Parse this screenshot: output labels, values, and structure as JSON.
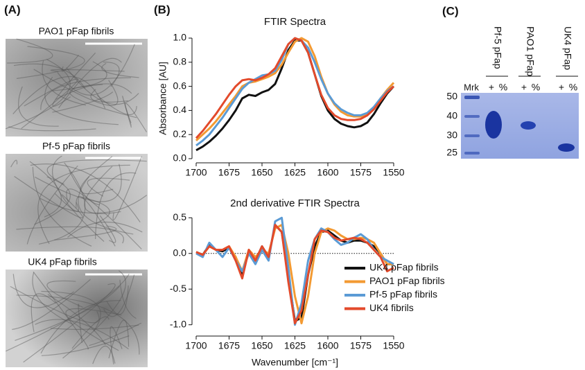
{
  "panel_a": {
    "label": "(A)",
    "captions": [
      "PAO1 pFap fibrils",
      "Pf-5 pFap fibrils",
      "UK4 pFap fibrils"
    ]
  },
  "panel_b": {
    "label": "(B)"
  },
  "panel_c": {
    "label": "(C)",
    "marker": "Mrk",
    "lanes": [
      "Pf-5 pFap",
      "PAO1 pFap",
      "UK4 pFap"
    ],
    "lane_marks": [
      "+",
      "%"
    ],
    "ladder": [
      "50",
      "40",
      "30",
      "25"
    ]
  },
  "chart_data": [
    {
      "type": "line",
      "title": "FTIR Spectra",
      "y_label": "Absorbance [AU]",
      "x": [
        1700,
        1695,
        1690,
        1685,
        1680,
        1675,
        1670,
        1665,
        1660,
        1655,
        1650,
        1645,
        1640,
        1635,
        1630,
        1625,
        1620,
        1615,
        1610,
        1605,
        1600,
        1595,
        1590,
        1585,
        1580,
        1575,
        1570,
        1565,
        1560,
        1555,
        1550
      ],
      "xlim": [
        1700,
        1550
      ],
      "xticks": [
        1700,
        1675,
        1650,
        1625,
        1600,
        1575,
        1550
      ],
      "ylim": [
        0,
        1
      ],
      "yticks": [
        {
          "value": 0,
          "label": "0.0"
        },
        0.2,
        0.4,
        0.6,
        0.8,
        {
          "value": 1,
          "label": "1.0"
        }
      ],
      "series": [
        {
          "color": "#111111",
          "values": [
            0.07,
            0.1,
            0.14,
            0.19,
            0.25,
            0.32,
            0.4,
            0.5,
            0.53,
            0.52,
            0.55,
            0.57,
            0.62,
            0.75,
            0.9,
            0.98,
            0.98,
            0.88,
            0.7,
            0.52,
            0.4,
            0.33,
            0.29,
            0.27,
            0.26,
            0.27,
            0.3,
            0.37,
            0.46,
            0.54,
            0.6
          ]
        },
        {
          "color": "#f39a32",
          "values": [
            0.15,
            0.2,
            0.25,
            0.31,
            0.38,
            0.45,
            0.52,
            0.6,
            0.63,
            0.64,
            0.66,
            0.68,
            0.71,
            0.78,
            0.88,
            0.97,
            1.0,
            0.97,
            0.85,
            0.68,
            0.54,
            0.45,
            0.39,
            0.36,
            0.35,
            0.35,
            0.37,
            0.42,
            0.5,
            0.57,
            0.63
          ]
        },
        {
          "color": "#5b9bd5",
          "values": [
            0.11,
            0.15,
            0.2,
            0.27,
            0.34,
            0.42,
            0.5,
            0.58,
            0.63,
            0.66,
            0.69,
            0.7,
            0.73,
            0.82,
            0.95,
            1.0,
            0.98,
            0.92,
            0.8,
            0.66,
            0.54,
            0.46,
            0.41,
            0.38,
            0.36,
            0.36,
            0.38,
            0.43,
            0.5,
            0.56,
            0.6
          ]
        },
        {
          "color": "#e34a2b",
          "values": [
            0.17,
            0.23,
            0.3,
            0.37,
            0.45,
            0.53,
            0.6,
            0.65,
            0.66,
            0.65,
            0.67,
            0.7,
            0.75,
            0.85,
            0.95,
            1.0,
            0.98,
            0.88,
            0.7,
            0.53,
            0.42,
            0.36,
            0.33,
            0.32,
            0.32,
            0.33,
            0.36,
            0.41,
            0.48,
            0.55,
            0.6
          ]
        }
      ]
    },
    {
      "type": "line",
      "title": "2nd derivative FTIR Spectra",
      "x_label": "Wavenumber [cm⁻¹]",
      "x": [
        1700,
        1695,
        1690,
        1685,
        1680,
        1675,
        1670,
        1665,
        1660,
        1655,
        1650,
        1645,
        1640,
        1635,
        1630,
        1625,
        1620,
        1615,
        1610,
        1605,
        1600,
        1595,
        1590,
        1585,
        1580,
        1575,
        1570,
        1565,
        1560,
        1555,
        1550
      ],
      "xlim": [
        1700,
        1550
      ],
      "xticks": [
        1700,
        1675,
        1650,
        1625,
        1600,
        1575,
        1550
      ],
      "ylim": [
        -1.1,
        0.6
      ],
      "yticks": [
        {
          "value": -1,
          "label": "-1.0"
        },
        -0.5,
        {
          "value": 0,
          "label": "0.0"
        },
        0.5
      ],
      "legend": "lower right",
      "series": [
        {
          "name": "UK4 pFap fibrils",
          "color": "#111111",
          "values": [
            0.02,
            -0.02,
            0.12,
            0.05,
            0.03,
            0.08,
            -0.05,
            -0.3,
            0.05,
            -0.1,
            0.1,
            -0.05,
            0.4,
            0.3,
            -0.3,
            -0.95,
            -0.9,
            -0.3,
            0.1,
            0.3,
            0.32,
            0.25,
            0.18,
            0.15,
            0.18,
            0.18,
            0.15,
            0.1,
            0.0,
            -0.15,
            -0.15
          ]
        },
        {
          "name": "PAO1 pFap fibrils",
          "color": "#f39a32",
          "values": [
            0.02,
            -0.02,
            0.1,
            0.05,
            0.05,
            0.1,
            -0.05,
            -0.25,
            0.05,
            -0.05,
            0.05,
            0.0,
            0.35,
            0.4,
            0.0,
            -0.6,
            -0.98,
            -0.6,
            0.0,
            0.3,
            0.35,
            0.32,
            0.25,
            0.2,
            0.2,
            0.22,
            0.2,
            0.15,
            0.0,
            -0.15,
            -0.15
          ]
        },
        {
          "name": "Pf-5 pFap fibrils",
          "color": "#5b9bd5",
          "values": [
            0.0,
            -0.05,
            0.15,
            0.05,
            -0.05,
            0.08,
            -0.1,
            -0.25,
            0.0,
            -0.15,
            0.05,
            -0.1,
            0.45,
            0.5,
            -0.2,
            -1.0,
            -0.7,
            -0.1,
            0.2,
            0.35,
            0.3,
            0.2,
            0.12,
            0.15,
            0.22,
            0.27,
            0.2,
            0.05,
            -0.05,
            -0.1,
            -0.15
          ]
        },
        {
          "name": "UK4 fibrils",
          "color": "#e34a2b",
          "values": [
            0.02,
            -0.02,
            0.1,
            0.05,
            0.05,
            0.1,
            -0.1,
            -0.35,
            0.05,
            -0.1,
            0.1,
            -0.05,
            0.4,
            0.3,
            -0.4,
            -0.98,
            -0.8,
            -0.3,
            0.2,
            0.32,
            0.3,
            0.22,
            0.18,
            0.2,
            0.22,
            0.2,
            0.15,
            0.05,
            -0.05,
            -0.25,
            -0.2
          ]
        }
      ]
    }
  ]
}
